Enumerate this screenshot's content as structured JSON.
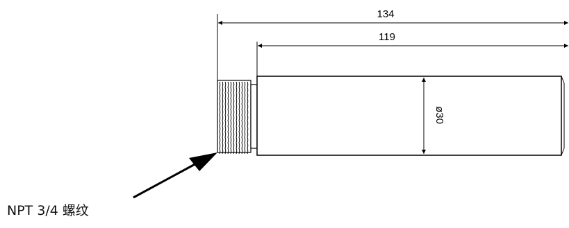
{
  "dimensions": {
    "overall_length": "134",
    "body_length": "119",
    "diameter": "ø30"
  },
  "callout": {
    "label": "NPT 3/4 螺纹"
  }
}
